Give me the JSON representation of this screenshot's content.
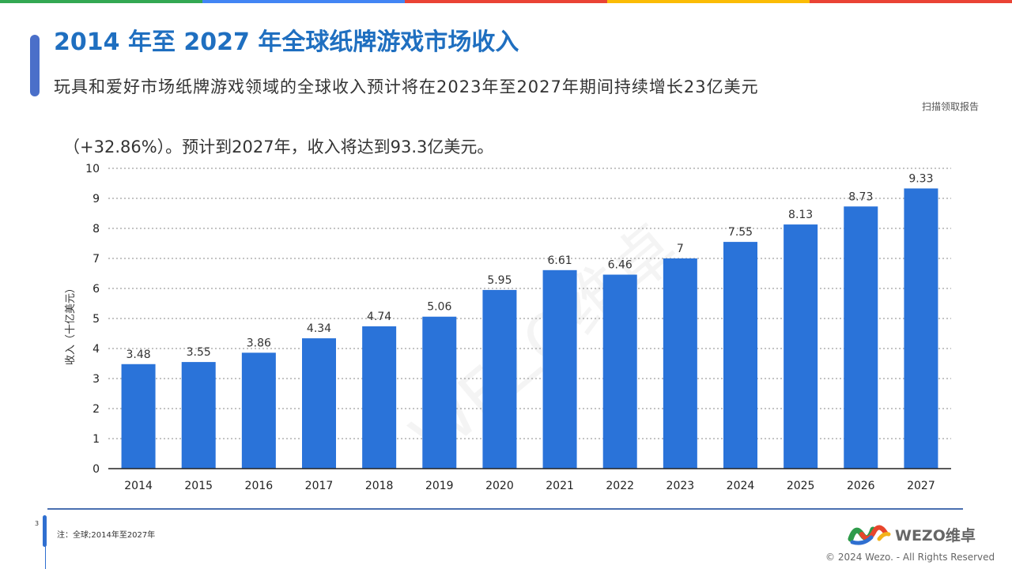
{
  "top_colors": [
    "#34a853",
    "#4285f4",
    "#ea4335",
    "#fbbc05",
    "#ea4335"
  ],
  "title": "2014 年至 2027 年全球纸牌游戏市场收入",
  "subtitle_line1": "玩具和爱好市场纸牌游戏领域的全球收入预计将在2023年至2027年期间持续增长23亿美元",
  "subtitle_line2": "（+32.86%）。预计到2027年，收入将达到93.3亿美元。",
  "scan_link": "扫描领取报告",
  "watermark": "WEZO维卓",
  "footer": {
    "page": "3",
    "note": "注：全球;2014年至2027年",
    "logo": "WEZO维卓",
    "copyright": "© 2024 Wezo. - All Rights Reserved"
  },
  "chart_data": {
    "type": "bar",
    "categories": [
      "2014",
      "2015",
      "2016",
      "2017",
      "2018",
      "2019",
      "2020",
      "2021",
      "2022",
      "2023",
      "2024",
      "2025",
      "2026",
      "2027"
    ],
    "values": [
      3.48,
      3.55,
      3.86,
      4.34,
      4.74,
      5.06,
      5.95,
      6.61,
      6.46,
      7,
      7.55,
      8.13,
      8.73,
      9.33
    ],
    "ylabel": "收入（十亿美元）",
    "ylim": [
      0,
      10
    ],
    "yticks": [
      "0",
      "1",
      "2",
      "3",
      "4",
      "5",
      "6",
      "7",
      "8",
      "9",
      "10"
    ],
    "grid": true,
    "bar_color": "#2a73d9"
  }
}
